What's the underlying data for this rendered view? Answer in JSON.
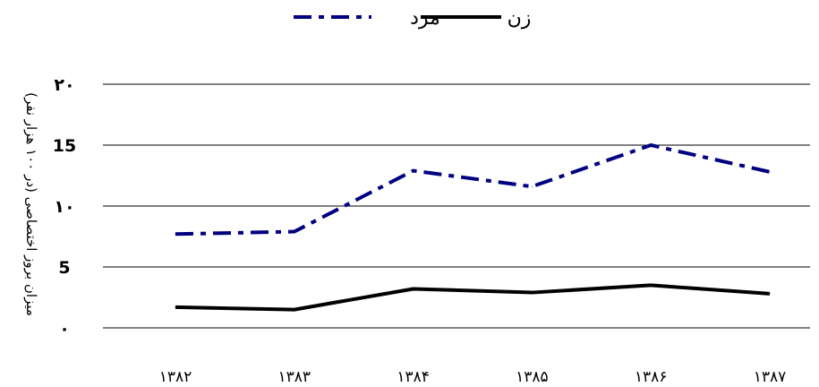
{
  "chart_data": {
    "type": "line",
    "title": "",
    "xlabel": "",
    "ylabel": "میزان بروز اختصاصی (در ۱۰۰ هزار نفر)",
    "categories": [
      "۱۳۸۲",
      "۱۳۸۳",
      "۱۳۸۴",
      "۱۳۸۵",
      "۱۳۸۶",
      "۱۳۸۷"
    ],
    "ylim": [
      0,
      20
    ],
    "yticks": [
      0,
      5,
      10,
      15,
      20
    ],
    "ytick_labels": [
      "۰",
      "5",
      "۱۰",
      "15",
      "۲۰"
    ],
    "grid": true,
    "legend_position": "top-center",
    "series": [
      {
        "name": "مرد",
        "values": [
          7.7,
          7.9,
          12.9,
          11.6,
          15.0,
          12.8
        ],
        "color": "#000080",
        "line_style": "dash-dot"
      },
      {
        "name": "زن",
        "values": [
          1.7,
          1.5,
          3.2,
          2.9,
          3.5,
          2.8
        ],
        "color": "#000000",
        "line_style": "solid"
      }
    ]
  }
}
